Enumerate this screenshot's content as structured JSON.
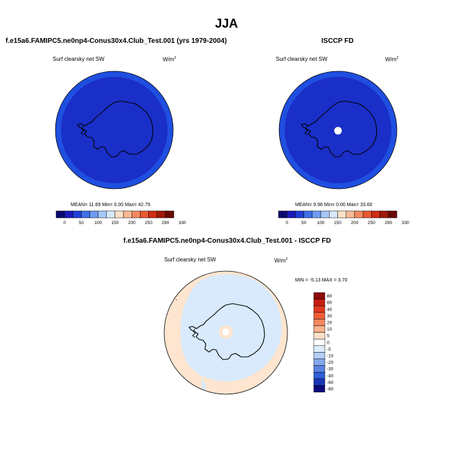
{
  "title": "JJA",
  "panel_left": {
    "title": "f.e15a6.FAMIPC5.ne0np4-Conus30x4.Club_Test.001 (yrs 1979-2004)",
    "field": "Surf clearsky net SW",
    "units": "W/m",
    "units_sup": "2",
    "stats": "MEAN=  11.69  Min=   0.00  Max=  42.79"
  },
  "panel_right": {
    "title": "ISCCP FD",
    "field": "Surf clearsky net SW",
    "units": "W/m",
    "units_sup": "2",
    "stats": "MEAN=   9.98  Min=   0.00  Max=  33.60"
  },
  "panel_diff": {
    "title": "f.e15a6.FAMIPC5.ne0np4-Conus30x4.Club_Test.001 - ISCCP FD",
    "field": "Surf clearsky net SW",
    "units": "W/m",
    "units_sup": "2",
    "stats": "MIN = -5.13 MAX =  3.70"
  },
  "colorbar_levels": [
    "0",
    "50",
    "100",
    "150",
    "200",
    "250",
    "290",
    "330"
  ],
  "colorbar_colors": [
    "#0a0a6e",
    "#1a1ab8",
    "#1f3fd8",
    "#3f6fe8",
    "#6f9bf0",
    "#a5c6f6",
    "#d6e8fb",
    "#fde2c8",
    "#f9b995",
    "#f28a60",
    "#e85a30",
    "#cf2d14",
    "#9e1a0a",
    "#6a0a05"
  ],
  "diff_levels": [
    "80",
    "60",
    "40",
    "30",
    "20",
    "10",
    "5",
    "0",
    "-5",
    "-10",
    "-20",
    "-30",
    "-40",
    "-60",
    "-80"
  ],
  "diff_colors": [
    "#8e0a0a",
    "#c81e10",
    "#e03a20",
    "#ef5e38",
    "#f58a60",
    "#f9b48e",
    "#fde0c8",
    "#ffffff",
    "#dcecfb",
    "#b4cff4",
    "#84a8ec",
    "#5a84e2",
    "#2f5ed8",
    "#1a36b8",
    "#0a0a7a"
  ],
  "colors": {
    "map_outer": "#1f4fe0",
    "map_inner": "#1a2fc8",
    "diff_outer": "#fde5d0",
    "diff_inner": "#d8eafc",
    "diff_pole": "#fde5d0"
  }
}
